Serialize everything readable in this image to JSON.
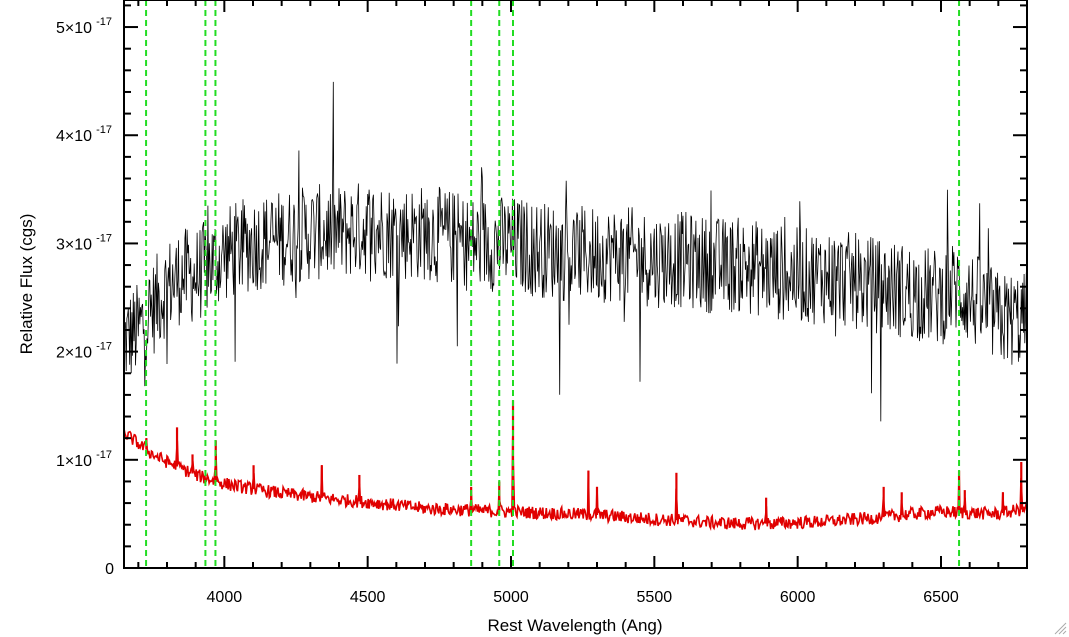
{
  "chart_data": {
    "type": "line",
    "title": "",
    "xlabel": "Rest Wavelength (Ang)",
    "ylabel": "Relative Flux (cgs)",
    "xlim": [
      3650,
      6800
    ],
    "ylim": [
      0,
      5.25e-17
    ],
    "x_ticks": [
      4000,
      4500,
      5000,
      5500,
      6000,
      6500
    ],
    "x_tick_labels": [
      "4000",
      "4500",
      "5000",
      "5500",
      "6000",
      "6500"
    ],
    "y_ticks": [
      0,
      1e-17,
      2e-17,
      3e-17,
      4e-17,
      5e-17
    ],
    "y_tick_labels": [
      {
        "mantissa": "0",
        "exponent": ""
      },
      {
        "mantissa": "1×10",
        "exponent": "-17"
      },
      {
        "mantissa": "2×10",
        "exponent": "-17"
      },
      {
        "mantissa": "3×10",
        "exponent": "-17"
      },
      {
        "mantissa": "4×10",
        "exponent": "-17"
      },
      {
        "mantissa": "5×10",
        "exponent": "-17"
      }
    ],
    "grid": false,
    "legend": "none",
    "series": [
      {
        "color": "#000000",
        "style": "noisy spectrum",
        "x": [
          3650,
          3700,
          3750,
          3800,
          3850,
          3900,
          3950,
          4000,
          4100,
          4200,
          4300,
          4400,
          4500,
          4600,
          4700,
          4800,
          4850,
          4900,
          4950,
          5000,
          5100,
          5200,
          5300,
          5400,
          5500,
          5600,
          5700,
          5800,
          5900,
          6000,
          6100,
          6200,
          6300,
          6400,
          6500,
          6550,
          6600,
          6700,
          6800
        ],
        "y": [
          2.1e-17,
          2.2e-17,
          2.4e-17,
          2.6e-17,
          2.7e-17,
          2.7e-17,
          2.8e-17,
          2.9e-17,
          3e-17,
          3.05e-17,
          3.1e-17,
          3.1e-17,
          3.15e-17,
          3.1e-17,
          3.1e-17,
          3.05e-17,
          3e-17,
          3e-17,
          3e-17,
          3e-17,
          2.95e-17,
          2.9e-17,
          2.9e-17,
          2.9e-17,
          2.85e-17,
          2.85e-17,
          2.8e-17,
          2.8e-17,
          2.75e-17,
          2.7e-17,
          2.7e-17,
          2.65e-17,
          2.6e-17,
          2.55e-17,
          2.5e-17,
          2.6e-17,
          2.5e-17,
          2.3e-17,
          2.3e-17
        ]
      },
      {
        "color": "#e00000",
        "style": "model continuum",
        "x": [
          3650,
          3700,
          3750,
          3800,
          3850,
          3900,
          4000,
          4100,
          4200,
          4300,
          4400,
          4500,
          4600,
          4700,
          4800,
          4900,
          5000,
          5100,
          5200,
          5300,
          5400,
          5500,
          5600,
          5700,
          5800,
          5900,
          6000,
          6100,
          6200,
          6300,
          6400,
          6500,
          6600,
          6700,
          6800
        ],
        "y": [
          1.25e-17,
          1.15e-17,
          1.05e-17,
          9.8e-18,
          9.2e-18,
          8.6e-18,
          7.8e-18,
          7.3e-18,
          6.9e-18,
          6.6e-18,
          6.3e-18,
          6.1e-18,
          5.8e-18,
          5.5e-18,
          5.4e-18,
          5.3e-18,
          5.2e-18,
          5.1e-18,
          5e-18,
          4.9e-18,
          4.7e-18,
          4.5e-18,
          4.4e-18,
          4.2e-18,
          4.1e-18,
          4.1e-18,
          4.2e-18,
          4.3e-18,
          4.5e-18,
          4.7e-18,
          5e-18,
          5.2e-18,
          5.1e-18,
          5e-18,
          5.5e-18
        ]
      }
    ],
    "emission_lines": [
      {
        "x": 3728,
        "peak": 1.2e-17
      },
      {
        "x": 3835,
        "peak": 1.3e-17
      },
      {
        "x": 3889,
        "peak": 1.05e-17
      },
      {
        "x": 3970,
        "peak": 1.18e-17
      },
      {
        "x": 4102,
        "peak": 9.5e-18
      },
      {
        "x": 4340,
        "peak": 9.5e-18
      },
      {
        "x": 4471,
        "peak": 8.6e-18
      },
      {
        "x": 4861,
        "peak": 7.5e-18
      },
      {
        "x": 4959,
        "peak": 8e-18
      },
      {
        "x": 5007,
        "peak": 1.55e-17
      },
      {
        "x": 5270,
        "peak": 9e-18
      },
      {
        "x": 5300,
        "peak": 7.5e-18
      },
      {
        "x": 5577,
        "peak": 8.8e-18
      },
      {
        "x": 5890,
        "peak": 6.5e-18
      },
      {
        "x": 6300,
        "peak": 7.5e-18
      },
      {
        "x": 6363,
        "peak": 7e-18
      },
      {
        "x": 6563,
        "peak": 9e-18
      },
      {
        "x": 6583,
        "peak": 7.2e-18
      },
      {
        "x": 6716,
        "peak": 7e-18
      },
      {
        "x": 6780,
        "peak": 9.8e-18
      }
    ],
    "reference_lines": {
      "color": "#22dd22",
      "style": "dashed",
      "x": [
        3727,
        3934,
        3969,
        4861,
        4959,
        5007,
        6563
      ]
    }
  }
}
